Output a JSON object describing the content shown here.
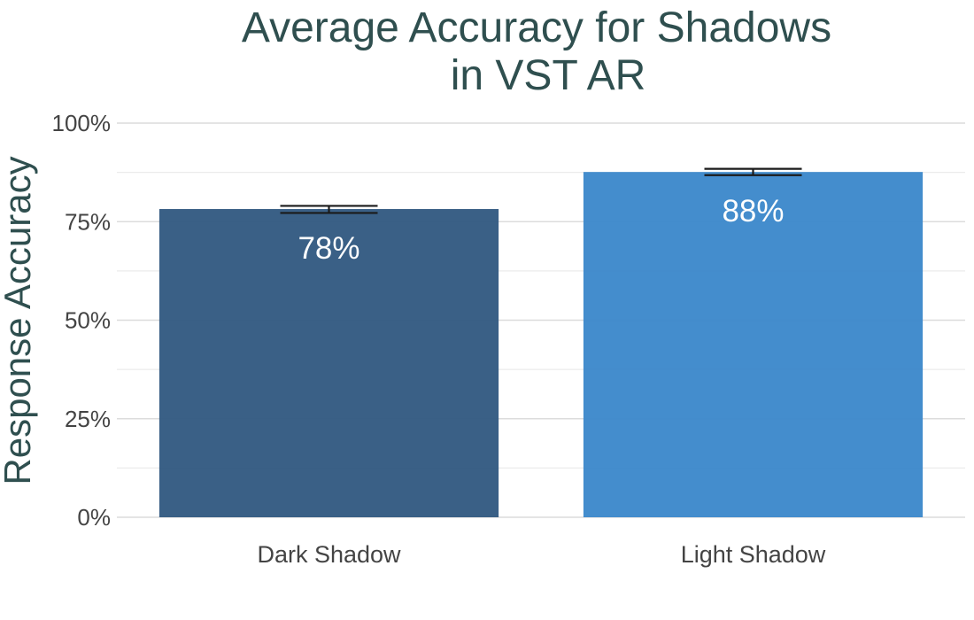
{
  "chart_data": {
    "type": "bar",
    "title_lines": [
      "Average Accuracy for Shadows",
      "in VST AR"
    ],
    "xlabel": "",
    "ylabel": "Response Accuracy",
    "categories": [
      "Dark Shadow",
      "Light Shadow"
    ],
    "values": [
      0.782,
      0.876
    ],
    "error_low": [
      0.772,
      0.868
    ],
    "error_high": [
      0.79,
      0.884
    ],
    "data_labels": [
      "78%",
      "88%"
    ],
    "ylim": [
      0,
      1
    ],
    "y_ticks": [
      0,
      0.25,
      0.5,
      0.75,
      1.0
    ],
    "y_tick_labels": [
      "0%",
      "25%",
      "50%",
      "75%",
      "100%"
    ],
    "y_minor_ticks": [
      0.125,
      0.375,
      0.625,
      0.875
    ],
    "bar_colors": [
      "#2F5780",
      "#3A87CA"
    ],
    "grid": true,
    "legend": "none"
  }
}
